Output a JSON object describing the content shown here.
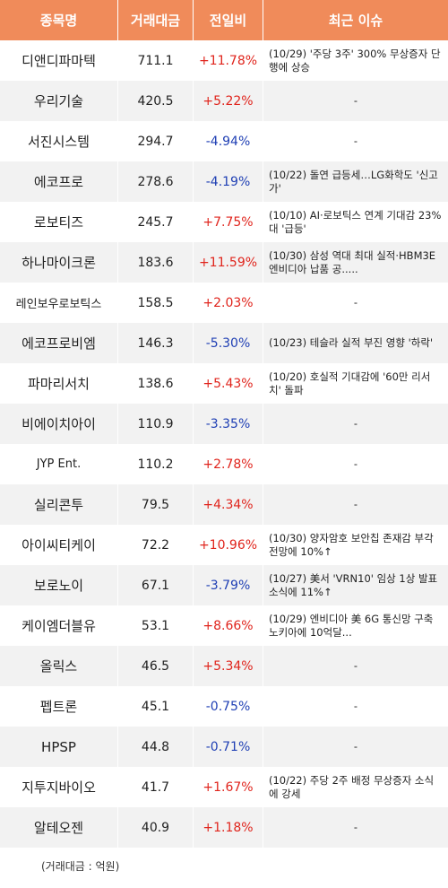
{
  "header": {
    "col_name": "종목명",
    "col_volume": "거래대금",
    "col_change": "전일비",
    "col_issue": "최근 이슈"
  },
  "rows": [
    {
      "name": "디앤디파마텍",
      "volume": "711.1",
      "change": "+11.78%",
      "dir": "up",
      "issue": "(10/29) '주당 3주' 300% 무상증자 단행에 상승"
    },
    {
      "name": "우리기술",
      "volume": "420.5",
      "change": "+5.22%",
      "dir": "up",
      "issue": "-"
    },
    {
      "name": "서진시스템",
      "volume": "294.7",
      "change": "-4.94%",
      "dir": "down",
      "issue": "-"
    },
    {
      "name": "에코프로",
      "volume": "278.6",
      "change": "-4.19%",
      "dir": "down",
      "issue": "(10/22) 돌연 급등세…LG화학도 '신고가'"
    },
    {
      "name": "로보티즈",
      "volume": "245.7",
      "change": "+7.75%",
      "dir": "up",
      "issue": "(10/10) AI·로보틱스 연계 기대감 23%대 '급등'"
    },
    {
      "name": "하나마이크론",
      "volume": "183.6",
      "change": "+11.59%",
      "dir": "up",
      "issue": "(10/30) 삼성 역대 최대 실적·HBM3E 엔비디아 납품 공....."
    },
    {
      "name": "레인보우로보틱스",
      "volume": "158.5",
      "change": "+2.03%",
      "dir": "up",
      "issue": "-"
    },
    {
      "name": "에코프로비엠",
      "volume": "146.3",
      "change": "-5.30%",
      "dir": "down",
      "issue": "(10/23) 테슬라 실적 부진 영향 '하락'"
    },
    {
      "name": "파마리서치",
      "volume": "138.6",
      "change": "+5.43%",
      "dir": "up",
      "issue": "(10/20) 호실적 기대감에 '60만 리서치' 돌파"
    },
    {
      "name": "비에이치아이",
      "volume": "110.9",
      "change": "-3.35%",
      "dir": "down",
      "issue": "-"
    },
    {
      "name": "JYP Ent.",
      "volume": "110.2",
      "change": "+2.78%",
      "dir": "up",
      "issue": "-"
    },
    {
      "name": "실리콘투",
      "volume": "79.5",
      "change": "+4.34%",
      "dir": "up",
      "issue": "-"
    },
    {
      "name": "아이씨티케이",
      "volume": "72.2",
      "change": "+10.96%",
      "dir": "up",
      "issue": "(10/30) 양자암호 보안칩 존재감 부각 전망에 10%↑"
    },
    {
      "name": "보로노이",
      "volume": "67.1",
      "change": "-3.79%",
      "dir": "down",
      "issue": "(10/27) 美서 'VRN10' 임상 1상 발표 소식에 11%↑"
    },
    {
      "name": "케이엠더블유",
      "volume": "53.1",
      "change": "+8.66%",
      "dir": "up",
      "issue": "(10/29) 엔비디아 美 6G 통신망 구축 노키아에 10억달..."
    },
    {
      "name": "올릭스",
      "volume": "46.5",
      "change": "+5.34%",
      "dir": "up",
      "issue": "-"
    },
    {
      "name": "펩트론",
      "volume": "45.1",
      "change": "-0.75%",
      "dir": "down",
      "issue": "-"
    },
    {
      "name": "HPSP",
      "volume": "44.8",
      "change": "-0.71%",
      "dir": "down",
      "issue": "-"
    },
    {
      "name": "지투지바이오",
      "volume": "41.7",
      "change": "+1.67%",
      "dir": "up",
      "issue": "(10/22) 주당 2주 배정 무상증자 소식에 강세"
    },
    {
      "name": "알테오젠",
      "volume": "40.9",
      "change": "+1.18%",
      "dir": "up",
      "issue": "-"
    }
  ],
  "footer": "(거래대금 : 억원)",
  "colors": {
    "header_bg": "#f08b5a",
    "up": "#e0241c",
    "down": "#1f3fb4",
    "row_alt": "#f2f2f2"
  }
}
